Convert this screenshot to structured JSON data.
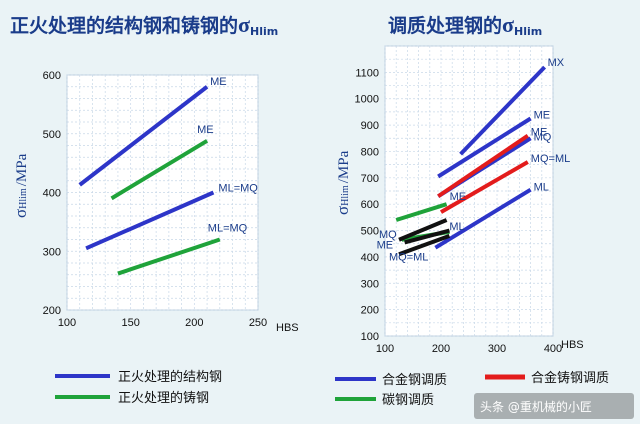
{
  "chart_data": [
    {
      "type": "line",
      "title": "正火处理的结构钢和铸钢的",
      "title_symbol": "σ",
      "title_sub": "Hlim",
      "ylabel_symbol": "σ",
      "ylabel_sub": "Hlim",
      "ylabel_unit": "/MPa",
      "xlabel": "HBS",
      "xlim": [
        100,
        250
      ],
      "ylim": [
        200,
        600
      ],
      "xticks": [
        100,
        150,
        200,
        250
      ],
      "yticks": [
        200,
        300,
        400,
        500,
        600
      ],
      "grid": true,
      "series": [
        {
          "label": "ME",
          "group": "structural",
          "color": "#2d35c8",
          "points": [
            [
              110,
              413
            ],
            [
              210,
              580
            ]
          ]
        },
        {
          "label": "ML=MQ",
          "group": "structural",
          "color": "#2d35c8",
          "points": [
            [
              115,
              305
            ],
            [
              215,
              400
            ]
          ]
        },
        {
          "label": "ME",
          "group": "cast",
          "color": "#1fa33a",
          "points": [
            [
              135,
              390
            ],
            [
              210,
              488
            ]
          ]
        },
        {
          "label": "ML=MQ",
          "group": "cast",
          "color": "#1fa33a",
          "points": [
            [
              140,
              262
            ],
            [
              220,
              320
            ]
          ]
        }
      ],
      "legend": [
        {
          "key": "structural",
          "text": "正火处理的结构钢",
          "color": "#2d35c8"
        },
        {
          "key": "cast",
          "text": "正火处理的铸钢",
          "color": "#1fa33a"
        }
      ]
    },
    {
      "type": "line",
      "title": "调质处理钢的",
      "title_symbol": "σ",
      "title_sub": "Hlim",
      "ylabel_symbol": "σ",
      "ylabel_sub": "Hlim",
      "ylabel_unit": "/MPa",
      "xlabel": "HBS",
      "xlim": [
        100,
        400
      ],
      "ylim": [
        100,
        1200
      ],
      "xticks": [
        100,
        200,
        300,
        400
      ],
      "yticks": [
        100,
        200,
        300,
        400,
        500,
        600,
        700,
        800,
        900,
        1000,
        1100
      ],
      "grid": true,
      "series": [
        {
          "label": "MX",
          "group": "alloy",
          "color": "#2d35c8",
          "points": [
            [
              235,
              790
            ],
            [
              385,
              1120
            ]
          ]
        },
        {
          "label": "ME",
          "group": "alloy",
          "color": "#2d35c8",
          "points": [
            [
              195,
              705
            ],
            [
              360,
              925
            ]
          ]
        },
        {
          "label": "MQ",
          "group": "alloy",
          "color": "#2d35c8",
          "points": [
            [
              195,
              630
            ],
            [
              360,
              850
            ]
          ]
        },
        {
          "label": "ML",
          "group": "alloy",
          "color": "#2d35c8",
          "points": [
            [
              190,
              435
            ],
            [
              360,
              655
            ]
          ]
        },
        {
          "label": "ME",
          "group": "alloy_cast",
          "color": "#e31c1c",
          "points": [
            [
              195,
              630
            ],
            [
              355,
              860
            ]
          ]
        },
        {
          "label": "MQ=ML",
          "group": "alloy_cast",
          "color": "#e31c1c",
          "points": [
            [
              200,
              570
            ],
            [
              355,
              760
            ]
          ]
        },
        {
          "label": "ME",
          "group": "carbon",
          "color": "#1fa33a",
          "points": [
            [
              120,
              540
            ],
            [
              210,
              600
            ]
          ]
        },
        {
          "label": "ML",
          "group": "carbon",
          "color": "#1fa33a",
          "points": [
            [
              130,
              465
            ],
            [
              215,
              495
            ]
          ]
        },
        {
          "label": "MQ",
          "group": "carbon",
          "color": "#111111",
          "points": [
            [
              125,
              465
            ],
            [
              210,
              540
            ]
          ]
        },
        {
          "label": "ME",
          "group": "carbon",
          "color": "#111111",
          "points": [
            [
              135,
              455
            ],
            [
              215,
              500
            ]
          ]
        },
        {
          "label": "MQ=ML",
          "group": "carbon",
          "color": "#111111",
          "points": [
            [
              125,
              410
            ],
            [
              215,
              480
            ]
          ]
        }
      ],
      "legend": [
        {
          "key": "alloy",
          "text": "合金钢调质",
          "color": "#2d35c8"
        },
        {
          "key": "alloy_cast",
          "text": "合金铸钢调质",
          "color": "#e31c1c"
        },
        {
          "key": "carbon",
          "text": "碳钢调质",
          "color": "#1fa33a"
        }
      ]
    }
  ],
  "watermark": "头条 @重机械的小匠"
}
